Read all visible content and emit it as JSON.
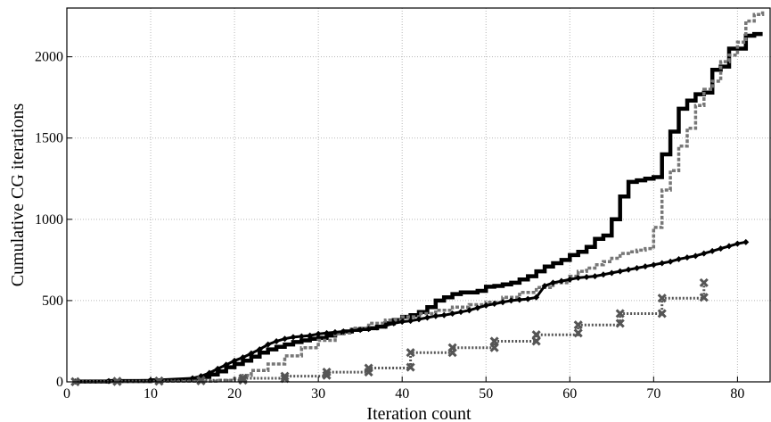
{
  "chart_data": {
    "type": "line",
    "title": "",
    "xlabel": "Iteration count",
    "ylabel": "Cumulative CG iterations",
    "xlim": [
      0,
      84
    ],
    "ylim": [
      0,
      2300
    ],
    "xticks": [
      0,
      10,
      20,
      30,
      40,
      50,
      60,
      70,
      80
    ],
    "yticks": [
      0,
      500,
      1000,
      1500,
      2000
    ],
    "xtick_labels": [
      "0",
      "10",
      "20",
      "30",
      "40",
      "50",
      "60",
      "70",
      "80"
    ],
    "ytick_labels": [
      "0",
      "500",
      "1000",
      "1500",
      "2000"
    ],
    "grid": true,
    "legend": "none",
    "series": [
      {
        "style": "solid-thick",
        "color": "#000000",
        "marker": "none",
        "x": [
          1,
          5,
          10,
          15,
          16,
          17,
          18,
          19,
          20,
          21,
          22,
          23,
          24,
          25,
          26,
          27,
          28,
          29,
          30,
          31,
          32,
          33,
          34,
          35,
          36,
          37,
          38,
          39,
          40,
          41,
          42,
          43,
          44,
          45,
          46,
          47,
          48,
          49,
          50,
          51,
          52,
          53,
          54,
          55,
          56,
          57,
          58,
          59,
          60,
          61,
          62,
          63,
          64,
          65,
          66,
          67,
          68,
          69,
          70,
          71,
          72,
          73,
          74,
          75,
          76,
          77,
          78,
          79,
          80,
          81,
          82,
          83
        ],
        "y": [
          2,
          5,
          10,
          20,
          30,
          45,
          65,
          90,
          110,
          130,
          155,
          180,
          200,
          215,
          230,
          245,
          255,
          265,
          270,
          285,
          300,
          310,
          320,
          325,
          330,
          340,
          360,
          380,
          400,
          410,
          430,
          460,
          500,
          520,
          540,
          550,
          550,
          560,
          585,
          590,
          600,
          610,
          630,
          650,
          680,
          710,
          730,
          750,
          780,
          800,
          830,
          880,
          900,
          1000,
          1140,
          1230,
          1240,
          1250,
          1260,
          1400,
          1540,
          1680,
          1730,
          1770,
          1780,
          1920,
          1940,
          2050,
          2050,
          2130,
          2140,
          2140
        ]
      },
      {
        "style": "dashed-light",
        "color": "#777777",
        "marker": "none",
        "x": [
          1,
          10,
          18,
          20,
          21,
          22,
          24,
          26,
          28,
          30,
          32,
          34,
          36,
          38,
          40,
          42,
          44,
          46,
          48,
          50,
          52,
          54,
          56,
          58,
          60,
          61,
          62,
          63,
          64,
          65,
          66,
          67,
          68,
          69,
          70,
          71,
          72,
          73,
          74,
          75,
          76,
          77,
          78,
          79,
          80,
          81,
          82,
          83
        ],
        "y": [
          2,
          4,
          10,
          20,
          40,
          70,
          110,
          160,
          210,
          255,
          300,
          330,
          360,
          380,
          400,
          420,
          440,
          460,
          475,
          490,
          520,
          550,
          580,
          610,
          650,
          680,
          700,
          720,
          740,
          760,
          790,
          800,
          810,
          820,
          950,
          1180,
          1300,
          1450,
          1560,
          1700,
          1800,
          1850,
          1970,
          2010,
          2090,
          2220,
          2260,
          2280
        ]
      },
      {
        "style": "solid-diamond",
        "color": "#000000",
        "marker": "diamond",
        "x": [
          1,
          5,
          10,
          15,
          16,
          17,
          18,
          19,
          20,
          21,
          22,
          23,
          24,
          25,
          26,
          27,
          28,
          29,
          30,
          31,
          32,
          33,
          34,
          35,
          36,
          37,
          38,
          39,
          40,
          41,
          42,
          43,
          44,
          45,
          46,
          47,
          48,
          49,
          50,
          51,
          52,
          53,
          54,
          55,
          56,
          57,
          58,
          59,
          60,
          61,
          62,
          63,
          64,
          65,
          66,
          67,
          68,
          69,
          70,
          71,
          72,
          73,
          74,
          75,
          76,
          77,
          78,
          79,
          80,
          81
        ],
        "y": [
          2,
          5,
          10,
          22,
          35,
          55,
          80,
          105,
          130,
          150,
          175,
          200,
          230,
          250,
          265,
          275,
          280,
          285,
          295,
          300,
          305,
          310,
          315,
          320,
          325,
          335,
          345,
          360,
          370,
          375,
          385,
          395,
          405,
          410,
          420,
          430,
          440,
          455,
          470,
          480,
          490,
          500,
          505,
          510,
          520,
          590,
          610,
          620,
          630,
          640,
          645,
          650,
          660,
          670,
          680,
          690,
          700,
          710,
          720,
          730,
          740,
          755,
          765,
          775,
          790,
          805,
          820,
          835,
          850,
          860
        ]
      },
      {
        "style": "dotted-x",
        "color": "#555555",
        "marker": "x",
        "x": [
          1,
          6,
          11,
          16,
          21,
          26,
          31,
          36,
          41,
          46,
          51,
          56,
          61,
          66,
          71,
          76
        ],
        "y": [
          2,
          4,
          6,
          10,
          22,
          35,
          60,
          85,
          180,
          210,
          250,
          290,
          350,
          420,
          515,
          610
        ],
        "steps_low": [
          0,
          2,
          4,
          6,
          10,
          20,
          40,
          60,
          90,
          180,
          210,
          250,
          300,
          360,
          420,
          520
        ]
      }
    ]
  }
}
